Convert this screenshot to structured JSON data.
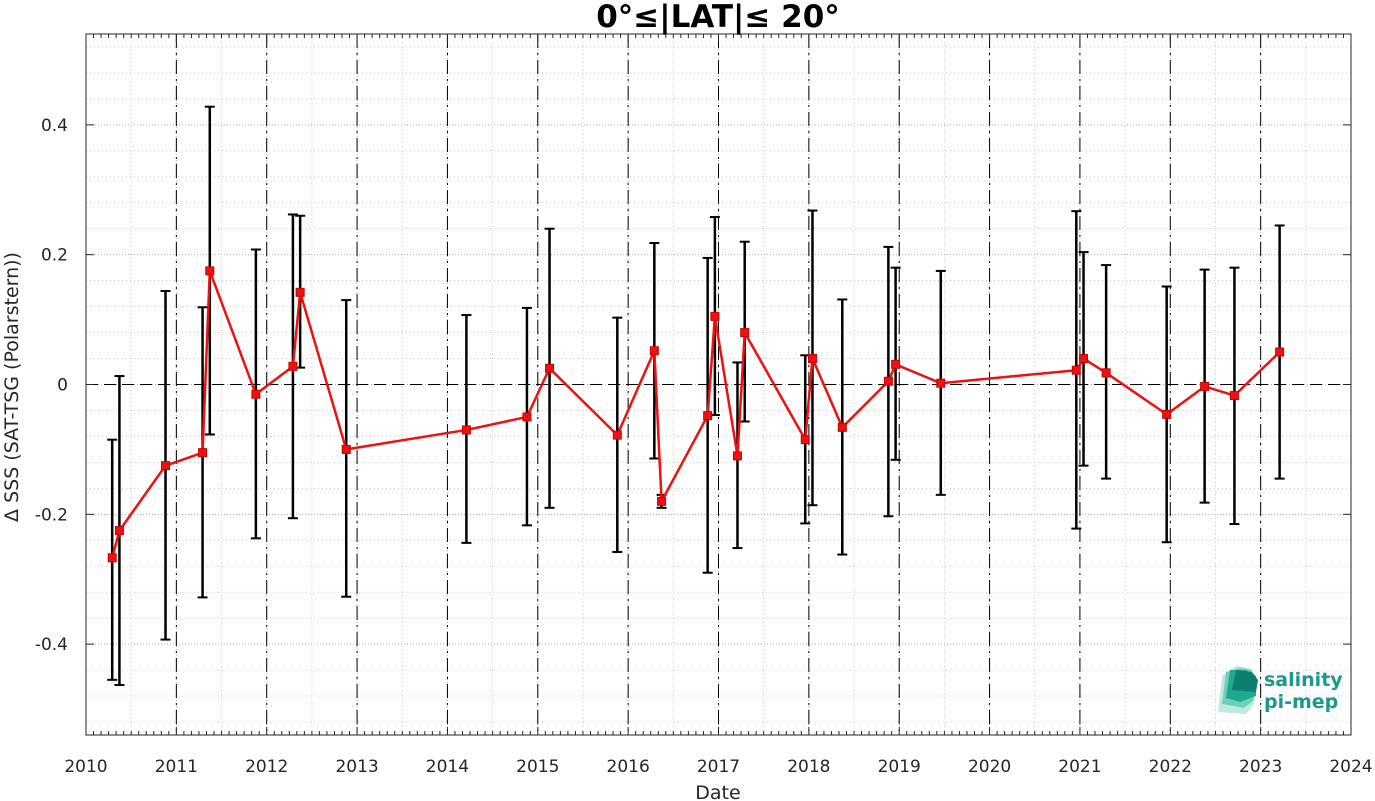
{
  "chart_data": {
    "type": "line",
    "title": "0°≤|LAT|≤ 20°",
    "xlabel": "Date",
    "ylabel": "Δ SSS (SAT-TSG (Polarstern))",
    "xlim": [
      2010,
      2024
    ],
    "ylim": [
      -0.54,
      0.54
    ],
    "x_ticks": [
      2010,
      2011,
      2012,
      2013,
      2014,
      2015,
      2016,
      2017,
      2018,
      2019,
      2020,
      2021,
      2022,
      2023,
      2024
    ],
    "x_tick_labels": [
      "2010",
      "2011",
      "2012",
      "2013",
      "2014",
      "2015",
      "2016",
      "2017",
      "2018",
      "2019",
      "2020",
      "2021",
      "2022",
      "2023",
      "2024"
    ],
    "y_ticks": [
      -0.4,
      -0.2,
      0,
      0.2,
      0.4
    ],
    "y_tick_labels": [
      "-0.4",
      "-0.2",
      "0",
      "0.2",
      "0.4"
    ],
    "grid": true,
    "zero_line": true,
    "year_dividers": true,
    "colors": {
      "series": "#ee1111",
      "errorbar": "#000000",
      "grid": "#c8c8c8",
      "logo": "#1a9a8c"
    },
    "series": [
      {
        "marker": "square",
        "x": [
          2010.29,
          2010.37,
          2010.88,
          2011.29,
          2011.37,
          2011.88,
          2012.29,
          2012.37,
          2012.88,
          2014.21,
          2014.88,
          2015.13,
          2015.88,
          2016.29,
          2016.37,
          2016.88,
          2016.96,
          2017.21,
          2017.29,
          2017.96,
          2018.04,
          2018.37,
          2018.88,
          2018.96,
          2019.46,
          2020.96,
          2021.04,
          2021.29,
          2021.96,
          2022.38,
          2022.71,
          2023.21
        ],
        "y": [
          -0.267,
          -0.225,
          -0.125,
          -0.105,
          0.175,
          -0.015,
          0.028,
          0.142,
          -0.1,
          -0.07,
          -0.05,
          0.025,
          -0.078,
          0.052,
          -0.18,
          -0.048,
          0.105,
          -0.11,
          0.08,
          -0.085,
          0.04,
          -0.066,
          0.005,
          0.031,
          0.002,
          0.022,
          0.04,
          0.018,
          -0.046,
          -0.003,
          -0.017,
          0.05
        ],
        "err_low": [
          -0.455,
          -0.463,
          -0.393,
          -0.328,
          -0.077,
          -0.237,
          -0.206,
          0.026,
          -0.327,
          -0.244,
          -0.217,
          -0.19,
          -0.258,
          -0.114,
          -0.19,
          -0.29,
          -0.047,
          -0.252,
          -0.057,
          -0.214,
          -0.186,
          -0.262,
          -0.203,
          -0.116,
          -0.17,
          -0.222,
          -0.125,
          -0.145,
          -0.243,
          -0.182,
          -0.215,
          -0.145
        ],
        "err_high": [
          -0.085,
          0.013,
          0.144,
          0.119,
          0.428,
          0.208,
          0.262,
          0.26,
          0.13,
          0.107,
          0.118,
          0.24,
          0.103,
          0.218,
          -0.17,
          0.195,
          0.258,
          0.034,
          0.22,
          0.045,
          0.268,
          0.131,
          0.212,
          0.18,
          0.175,
          0.267,
          0.204,
          0.184,
          0.151,
          0.177,
          0.18,
          0.245
        ]
      }
    ]
  },
  "logo": {
    "line1": "salinity",
    "line2": "pi-mep"
  }
}
